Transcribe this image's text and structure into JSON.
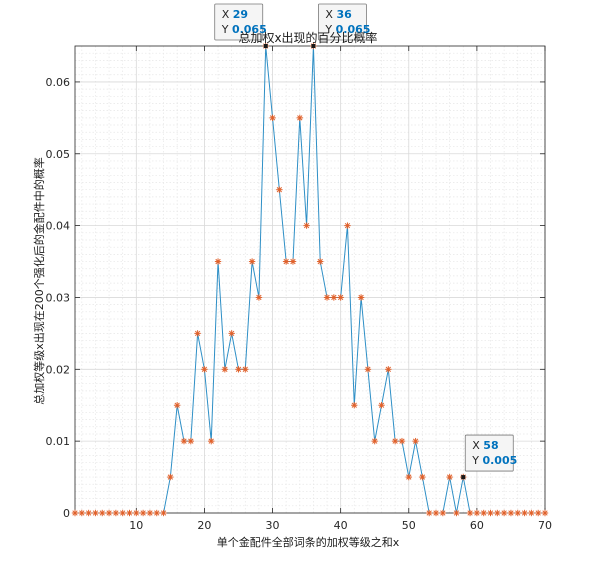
{
  "chart_data": {
    "type": "line",
    "title": "总加权x出现的百分比概率",
    "xlabel": "单个金配件全部词条的加权等级之和x",
    "ylabel": "总加权等级x出现在200个强化后的金配件中的概率",
    "xlim": [
      1,
      70
    ],
    "ylim": [
      0,
      0.065
    ],
    "xticks": [
      10,
      20,
      30,
      40,
      50,
      60,
      70
    ],
    "xtick_labels": [
      "10",
      "20",
      "30",
      "40",
      "50",
      "60",
      "70"
    ],
    "yticks": [
      0,
      0.01,
      0.02,
      0.03,
      0.04,
      0.05,
      0.06
    ],
    "ytick_labels": [
      "0",
      "0.01",
      "0.02",
      "0.03",
      "0.04",
      "0.05",
      "0.06"
    ],
    "grid": true,
    "minor_grid": true,
    "x": [
      1,
      2,
      3,
      4,
      5,
      6,
      7,
      8,
      9,
      10,
      11,
      12,
      13,
      14,
      15,
      16,
      17,
      18,
      19,
      20,
      21,
      22,
      23,
      24,
      25,
      26,
      27,
      28,
      29,
      30,
      31,
      32,
      33,
      34,
      35,
      36,
      37,
      38,
      39,
      40,
      41,
      42,
      43,
      44,
      45,
      46,
      47,
      48,
      49,
      50,
      51,
      52,
      53,
      54,
      55,
      56,
      57,
      58,
      59,
      60,
      61,
      62,
      63,
      64,
      65,
      66,
      67,
      68,
      69,
      70
    ],
    "series": [
      {
        "values": [
          0,
          0,
          0,
          0,
          0,
          0,
          0,
          0,
          0,
          0,
          0,
          0,
          0,
          0,
          0.005,
          0.015,
          0.01,
          0.01,
          0.025,
          0.02,
          0.01,
          0.035,
          0.02,
          0.025,
          0.02,
          0.02,
          0.035,
          0.03,
          0.065,
          0.055,
          0.045,
          0.035,
          0.035,
          0.055,
          0.04,
          0.065,
          0.035,
          0.03,
          0.03,
          0.03,
          0.04,
          0.015,
          0.03,
          0.02,
          0.01,
          0.015,
          0.02,
          0.01,
          0.01,
          0.005,
          0.01,
          0.005,
          0,
          0,
          0,
          0.005,
          0,
          0.005,
          0,
          0,
          0,
          0,
          0,
          0,
          0,
          0,
          0,
          0,
          0,
          0
        ],
        "line_color": "#2e8fc6",
        "marker_color": "#e0602a",
        "marker": "*"
      }
    ],
    "datatips": [
      {
        "x": "29",
        "y": "0.065",
        "x_label": "X",
        "y_label": "Y"
      },
      {
        "x": "36",
        "y": "0.065",
        "x_label": "X",
        "y_label": "Y"
      },
      {
        "x": "58",
        "y": "0.005",
        "x_label": "X",
        "y_label": "Y"
      }
    ]
  }
}
